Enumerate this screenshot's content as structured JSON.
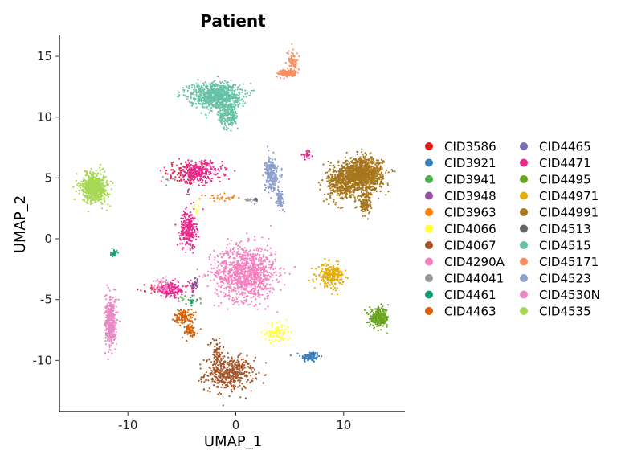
{
  "chart_data": {
    "type": "scatter",
    "title": "Patient",
    "xlabel": "UMAP_1",
    "ylabel": "UMAP_2",
    "xlim": [
      -16.5,
      15.5
    ],
    "ylim": [
      -14.5,
      16.7
    ],
    "xticks": [
      -10,
      0,
      10
    ],
    "yticks": [
      -10,
      -5,
      0,
      5,
      10,
      15
    ],
    "xtick_labels": [
      "-10",
      "0",
      "10"
    ],
    "ytick_labels": [
      "-10",
      "-5",
      "0",
      "5",
      "10",
      "15"
    ],
    "grid": false,
    "legend_position": "right",
    "legend_columns": 2,
    "series": [
      {
        "name": "CID3586",
        "color": "#E41A1C",
        "clusters": [
          {
            "x": -4.5,
            "y": 5.4,
            "sx": 1.4,
            "sy": 0.7,
            "n": 60
          },
          {
            "x": -8.0,
            "y": -4.1,
            "sx": 0.8,
            "sy": 0.3,
            "n": 15
          }
        ]
      },
      {
        "name": "CID3921",
        "color": "#377EB8",
        "clusters": [
          {
            "x": 6.9,
            "y": -9.7,
            "sx": 0.6,
            "sy": 0.3,
            "n": 90
          }
        ]
      },
      {
        "name": "CID3941",
        "color": "#4DAF4A",
        "clusters": [
          {
            "x": -4.2,
            "y": -5.0,
            "sx": 0.9,
            "sy": 0.3,
            "n": 20
          }
        ]
      },
      {
        "name": "CID3948",
        "color": "#984EA3",
        "clusters": [
          {
            "x": -3.8,
            "y": -3.8,
            "sx": 0.2,
            "sy": 0.5,
            "n": 35
          },
          {
            "x": -4.5,
            "y": 3.7,
            "sx": 0.2,
            "sy": 0.2,
            "n": 5
          }
        ]
      },
      {
        "name": "CID3963",
        "color": "#FF7F00",
        "clusters": [
          {
            "x": -1.5,
            "y": 3.4,
            "sx": 1.0,
            "sy": 0.2,
            "n": 30
          }
        ]
      },
      {
        "name": "CID4066",
        "color": "#FFFF33",
        "clusters": [
          {
            "x": 3.9,
            "y": -7.7,
            "sx": 0.8,
            "sy": 0.6,
            "n": 90
          },
          {
            "x": -3.8,
            "y": 2.5,
            "sx": 0.2,
            "sy": 0.3,
            "n": 10
          }
        ]
      },
      {
        "name": "CID4067",
        "color": "#A65628",
        "clusters": [
          {
            "x": -0.6,
            "y": -11.1,
            "sx": 1.5,
            "sy": 0.9,
            "n": 460
          },
          {
            "x": -1.8,
            "y": -9.3,
            "sx": 0.4,
            "sy": 0.8,
            "n": 60
          }
        ]
      },
      {
        "name": "CID4290A",
        "color": "#F781BF",
        "clusters": [
          {
            "x": 0.9,
            "y": -2.8,
            "sx": 1.9,
            "sy": 1.5,
            "n": 1000
          }
        ]
      },
      {
        "name": "CID44041",
        "color": "#999999",
        "clusters": [
          {
            "x": 1.5,
            "y": 3.2,
            "sx": 0.4,
            "sy": 0.1,
            "n": 15
          },
          {
            "x": -6.0,
            "y": 4.8,
            "sx": 0.5,
            "sy": 0.2,
            "n": 10
          }
        ]
      },
      {
        "name": "CID4461",
        "color": "#1B9E77",
        "clusters": [
          {
            "x": -11.3,
            "y": -1.2,
            "sx": 0.2,
            "sy": 0.2,
            "n": 30
          },
          {
            "x": -4.0,
            "y": -5.2,
            "sx": 0.2,
            "sy": 0.2,
            "n": 8
          }
        ]
      },
      {
        "name": "CID4463",
        "color": "#D95F02",
        "clusters": [
          {
            "x": -4.8,
            "y": -6.4,
            "sx": 0.6,
            "sy": 0.4,
            "n": 110
          },
          {
            "x": -4.3,
            "y": -7.6,
            "sx": 0.5,
            "sy": 0.4,
            "n": 60
          }
        ]
      },
      {
        "name": "CID4465",
        "color": "#7570B3",
        "clusters": [
          {
            "x": 1.8,
            "y": 3.2,
            "sx": 0.1,
            "sy": 0.2,
            "n": 8
          }
        ]
      },
      {
        "name": "CID4471",
        "color": "#E7298A",
        "clusters": [
          {
            "x": -4.4,
            "y": 0.8,
            "sx": 0.5,
            "sy": 1.0,
            "n": 250
          },
          {
            "x": -3.5,
            "y": 5.5,
            "sx": 1.5,
            "sy": 0.6,
            "n": 300
          },
          {
            "x": -6.0,
            "y": -4.2,
            "sx": 1.1,
            "sy": 0.4,
            "n": 150
          },
          {
            "x": 6.6,
            "y": 6.9,
            "sx": 0.3,
            "sy": 0.2,
            "n": 25
          }
        ]
      },
      {
        "name": "CID4495",
        "color": "#66A61E",
        "clusters": [
          {
            "x": 13.3,
            "y": -6.5,
            "sx": 0.6,
            "sy": 0.5,
            "n": 260
          }
        ]
      },
      {
        "name": "CID44971",
        "color": "#E6AB02",
        "clusters": [
          {
            "x": 8.8,
            "y": -3.0,
            "sx": 0.8,
            "sy": 0.6,
            "n": 230
          }
        ]
      },
      {
        "name": "CID44991",
        "color": "#A6761D",
        "clusters": [
          {
            "x": 11.8,
            "y": 5.3,
            "sx": 1.2,
            "sy": 0.9,
            "n": 1100
          },
          {
            "x": 9.8,
            "y": 4.6,
            "sx": 0.9,
            "sy": 1.0,
            "n": 400
          },
          {
            "x": 12.0,
            "y": 2.9,
            "sx": 0.4,
            "sy": 0.7,
            "n": 120
          }
        ]
      },
      {
        "name": "CID4513",
        "color": "#666666",
        "clusters": [
          {
            "x": 1.9,
            "y": 3.2,
            "sx": 0.1,
            "sy": 0.1,
            "n": 5
          }
        ]
      },
      {
        "name": "CID4515",
        "color": "#66C2A5",
        "clusters": [
          {
            "x": -1.9,
            "y": 11.8,
            "sx": 1.6,
            "sy": 0.7,
            "n": 800
          },
          {
            "x": -0.7,
            "y": 10.2,
            "sx": 0.6,
            "sy": 0.8,
            "n": 200
          }
        ]
      },
      {
        "name": "CID45171",
        "color": "#FC8D62",
        "clusters": [
          {
            "x": 4.8,
            "y": 13.6,
            "sx": 0.6,
            "sy": 0.2,
            "n": 140
          },
          {
            "x": 5.3,
            "y": 14.6,
            "sx": 0.3,
            "sy": 0.5,
            "n": 70
          }
        ]
      },
      {
        "name": "CID4523",
        "color": "#8DA0CB",
        "clusters": [
          {
            "x": 3.3,
            "y": 5.3,
            "sx": 0.4,
            "sy": 0.9,
            "n": 250
          },
          {
            "x": 4.1,
            "y": 3.3,
            "sx": 0.2,
            "sy": 0.5,
            "n": 80
          }
        ]
      },
      {
        "name": "CID4530N",
        "color": "#E78AC3",
        "clusters": [
          {
            "x": -11.6,
            "y": -6.9,
            "sx": 0.35,
            "sy": 1.3,
            "n": 380
          },
          {
            "x": -6.8,
            "y": -3.8,
            "sx": 0.6,
            "sy": 0.4,
            "n": 60
          }
        ]
      },
      {
        "name": "CID4535",
        "color": "#A6D854",
        "clusters": [
          {
            "x": -13.1,
            "y": 4.2,
            "sx": 0.8,
            "sy": 0.8,
            "n": 640
          }
        ]
      }
    ]
  }
}
